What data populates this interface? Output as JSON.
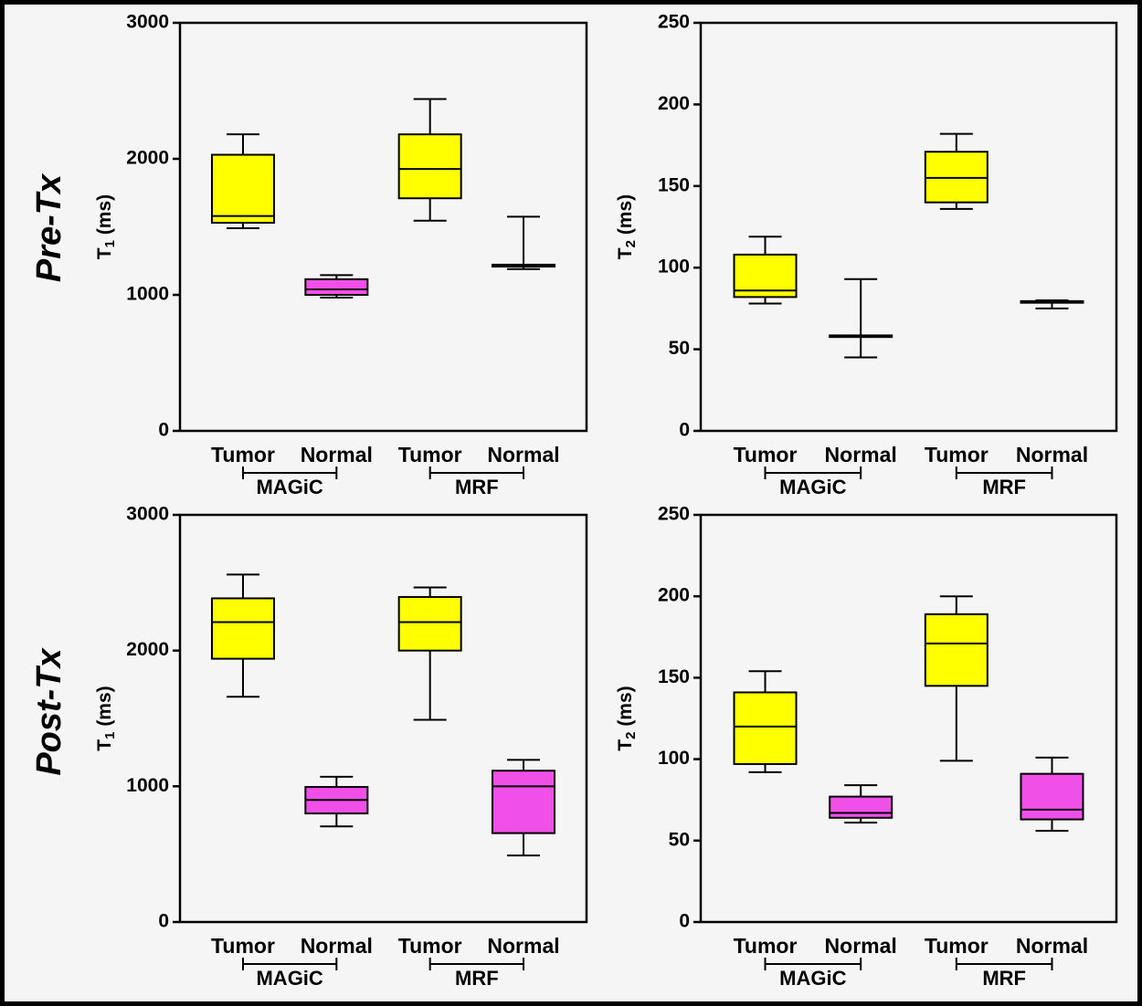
{
  "row_labels": [
    "Pre-Tx",
    "Post-Tx"
  ],
  "colors": {
    "tumor": "#ffff00",
    "normal": "#f050e8",
    "frame": "#000000",
    "background": "#f5f5f5"
  },
  "chart_data": [
    {
      "type": "box",
      "row": "Pre-Tx",
      "ylabel": "T",
      "ylabel_sub": "1",
      "ylabel_unit": "(ms)",
      "ylim": [
        0,
        3000
      ],
      "yticks": [
        "0",
        "1000",
        "2000",
        "3000"
      ],
      "categories": [
        "Tumor",
        "Normal",
        "Tumor",
        "Normal"
      ],
      "groups": [
        {
          "label": "MAGiC",
          "categories": [
            0,
            1
          ]
        },
        {
          "label": "MRF",
          "categories": [
            2,
            3
          ]
        }
      ],
      "boxes": [
        {
          "category": "Tumor",
          "group": "MAGiC",
          "color": "#ffff00",
          "min": 1490,
          "q1": 1530,
          "median": 1580,
          "q3": 2030,
          "max": 2180
        },
        {
          "category": "Normal",
          "group": "MAGiC",
          "color": "#f050e8",
          "min": 980,
          "q1": 1000,
          "median": 1040,
          "q3": 1115,
          "max": 1145
        },
        {
          "category": "Tumor",
          "group": "MRF",
          "color": "#ffff00",
          "min": 1545,
          "q1": 1710,
          "median": 1925,
          "q3": 2180,
          "max": 2440
        },
        {
          "category": "Normal",
          "group": "MRF",
          "color": "#f050e8",
          "min": 1190,
          "q1": 1208,
          "median": 1215,
          "q3": 1222,
          "max": 1575
        }
      ]
    },
    {
      "type": "box",
      "row": "Pre-Tx",
      "ylabel": "T",
      "ylabel_sub": "2",
      "ylabel_unit": "(ms)",
      "ylim": [
        0,
        250
      ],
      "yticks": [
        "0",
        "50",
        "100",
        "150",
        "200",
        "250"
      ],
      "categories": [
        "Tumor",
        "Normal",
        "Tumor",
        "Normal"
      ],
      "groups": [
        {
          "label": "MAGiC",
          "categories": [
            0,
            1
          ]
        },
        {
          "label": "MRF",
          "categories": [
            2,
            3
          ]
        }
      ],
      "boxes": [
        {
          "category": "Tumor",
          "group": "MAGiC",
          "color": "#ffff00",
          "min": 78,
          "q1": 82,
          "median": 86,
          "q3": 108,
          "max": 119
        },
        {
          "category": "Normal",
          "group": "MAGiC",
          "color": "#f050e8",
          "min": 45,
          "q1": 57.5,
          "median": 58,
          "q3": 58.5,
          "max": 93
        },
        {
          "category": "Tumor",
          "group": "MRF",
          "color": "#ffff00",
          "min": 136,
          "q1": 140,
          "median": 155,
          "q3": 171,
          "max": 182
        },
        {
          "category": "Normal",
          "group": "MRF",
          "color": "#f050e8",
          "min": 75,
          "q1": 78.5,
          "median": 79,
          "q3": 79.5,
          "max": 80
        }
      ]
    },
    {
      "type": "box",
      "row": "Post-Tx",
      "ylabel": "T",
      "ylabel_sub": "1",
      "ylabel_unit": "(ms)",
      "ylim": [
        0,
        3000
      ],
      "yticks": [
        "0",
        "1000",
        "2000",
        "3000"
      ],
      "categories": [
        "Tumor",
        "Normal",
        "Tumor",
        "Normal"
      ],
      "groups": [
        {
          "label": "MAGiC",
          "categories": [
            0,
            1
          ]
        },
        {
          "label": "MRF",
          "categories": [
            2,
            3
          ]
        }
      ],
      "boxes": [
        {
          "category": "Tumor",
          "group": "MAGiC",
          "color": "#ffff00",
          "min": 1660,
          "q1": 1940,
          "median": 2210,
          "q3": 2385,
          "max": 2560
        },
        {
          "category": "Normal",
          "group": "MAGiC",
          "color": "#f050e8",
          "min": 705,
          "q1": 800,
          "median": 900,
          "q3": 995,
          "max": 1070
        },
        {
          "category": "Tumor",
          "group": "MRF",
          "color": "#ffff00",
          "min": 1490,
          "q1": 2000,
          "median": 2210,
          "q3": 2395,
          "max": 2465
        },
        {
          "category": "Normal",
          "group": "MRF",
          "color": "#f050e8",
          "min": 490,
          "q1": 655,
          "median": 1000,
          "q3": 1115,
          "max": 1195
        }
      ]
    },
    {
      "type": "box",
      "row": "Post-Tx",
      "ylabel": "T",
      "ylabel_sub": "2",
      "ylabel_unit": "(ms)",
      "ylim": [
        0,
        250
      ],
      "yticks": [
        "0",
        "50",
        "100",
        "150",
        "200",
        "250"
      ],
      "categories": [
        "Tumor",
        "Normal",
        "Tumor",
        "Normal"
      ],
      "groups": [
        {
          "label": "MAGiC",
          "categories": [
            0,
            1
          ]
        },
        {
          "label": "MRF",
          "categories": [
            2,
            3
          ]
        }
      ],
      "boxes": [
        {
          "category": "Tumor",
          "group": "MAGiC",
          "color": "#ffff00",
          "min": 92,
          "q1": 97,
          "median": 120,
          "q3": 141,
          "max": 154
        },
        {
          "category": "Normal",
          "group": "MAGiC",
          "color": "#f050e8",
          "min": 61,
          "q1": 64,
          "median": 67,
          "q3": 77,
          "max": 84
        },
        {
          "category": "Tumor",
          "group": "MRF",
          "color": "#ffff00",
          "min": 99,
          "q1": 145,
          "median": 171,
          "q3": 189,
          "max": 200
        },
        {
          "category": "Normal",
          "group": "MRF",
          "color": "#f050e8",
          "min": 56,
          "q1": 63,
          "median": 69,
          "q3": 91,
          "max": 101
        }
      ]
    }
  ]
}
